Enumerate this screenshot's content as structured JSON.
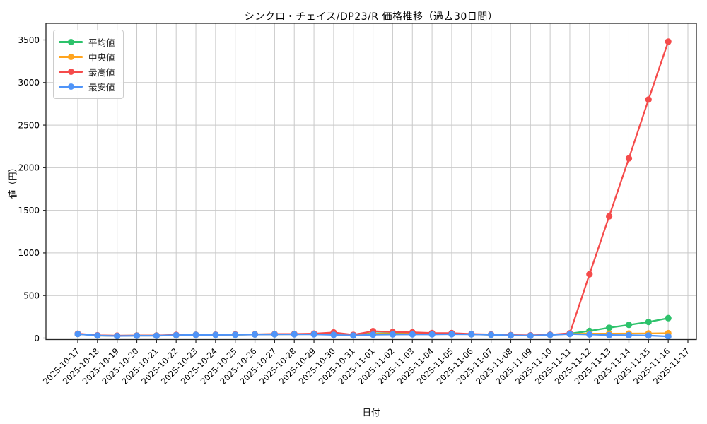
{
  "chart_data": {
    "type": "line",
    "title": "シンクロ・チェイス/DP23/R 価格推移（過去30日間）",
    "xlabel": "日付",
    "ylabel": "値（円）",
    "x": [
      "2025-10-17",
      "2025-10-18",
      "2025-10-19",
      "2025-10-20",
      "2025-10-21",
      "2025-10-22",
      "2025-10-23",
      "2025-10-24",
      "2025-10-25",
      "2025-10-26",
      "2025-10-27",
      "2025-10-28",
      "2025-10-29",
      "2025-10-30",
      "2025-10-31",
      "2025-11-01",
      "2025-11-02",
      "2025-11-03",
      "2025-11-04",
      "2025-11-05",
      "2025-11-06",
      "2025-11-07",
      "2025-11-08",
      "2025-11-09",
      "2025-11-10",
      "2025-11-11",
      "2025-11-12",
      "2025-11-13",
      "2025-11-14",
      "2025-11-15",
      "2025-11-16",
      "2025-11-17"
    ],
    "series": [
      {
        "name": "平均値",
        "color": "#2dc26b",
        "values": [
          50,
          31,
          27,
          30,
          30,
          36,
          39,
          39,
          41,
          44,
          46,
          47,
          49,
          52,
          34,
          58,
          54,
          53,
          51,
          51,
          46,
          41,
          34,
          31,
          39,
          52,
          85,
          122,
          155,
          190,
          235,
          null
        ]
      },
      {
        "name": "中央値",
        "color": "#ffa41e",
        "values": [
          49,
          30,
          26,
          29,
          29,
          36,
          38,
          39,
          41,
          43,
          46,
          46,
          47,
          45,
          32,
          52,
          49,
          49,
          48,
          49,
          46,
          40,
          33,
          30,
          38,
          50,
          52,
          53,
          54,
          55,
          58,
          null
        ]
      },
      {
        "name": "最高値",
        "color": "#f54b4b",
        "values": [
          52,
          33,
          29,
          31,
          31,
          38,
          40,
          41,
          43,
          45,
          48,
          49,
          53,
          66,
          39,
          82,
          71,
          68,
          60,
          59,
          48,
          43,
          36,
          33,
          41,
          56,
          750,
          1430,
          2110,
          2800,
          3480,
          null
        ]
      },
      {
        "name": "最安値",
        "color": "#4f94f8",
        "values": [
          48,
          30,
          25,
          28,
          28,
          35,
          38,
          38,
          40,
          42,
          45,
          45,
          45,
          38,
          30,
          41,
          43,
          44,
          44,
          46,
          45,
          40,
          32,
          29,
          37,
          48,
          42,
          36,
          34,
          31,
          20,
          null
        ]
      }
    ],
    "yticks": [
      0,
      500,
      1000,
      1500,
      2000,
      2500,
      3000,
      3500
    ],
    "ylim": [
      0,
      3500
    ],
    "grid": true,
    "legend_position": "upper-left",
    "grid_color": "#c9c9c9",
    "spine_color": "#262626",
    "text_color": "#000000"
  }
}
